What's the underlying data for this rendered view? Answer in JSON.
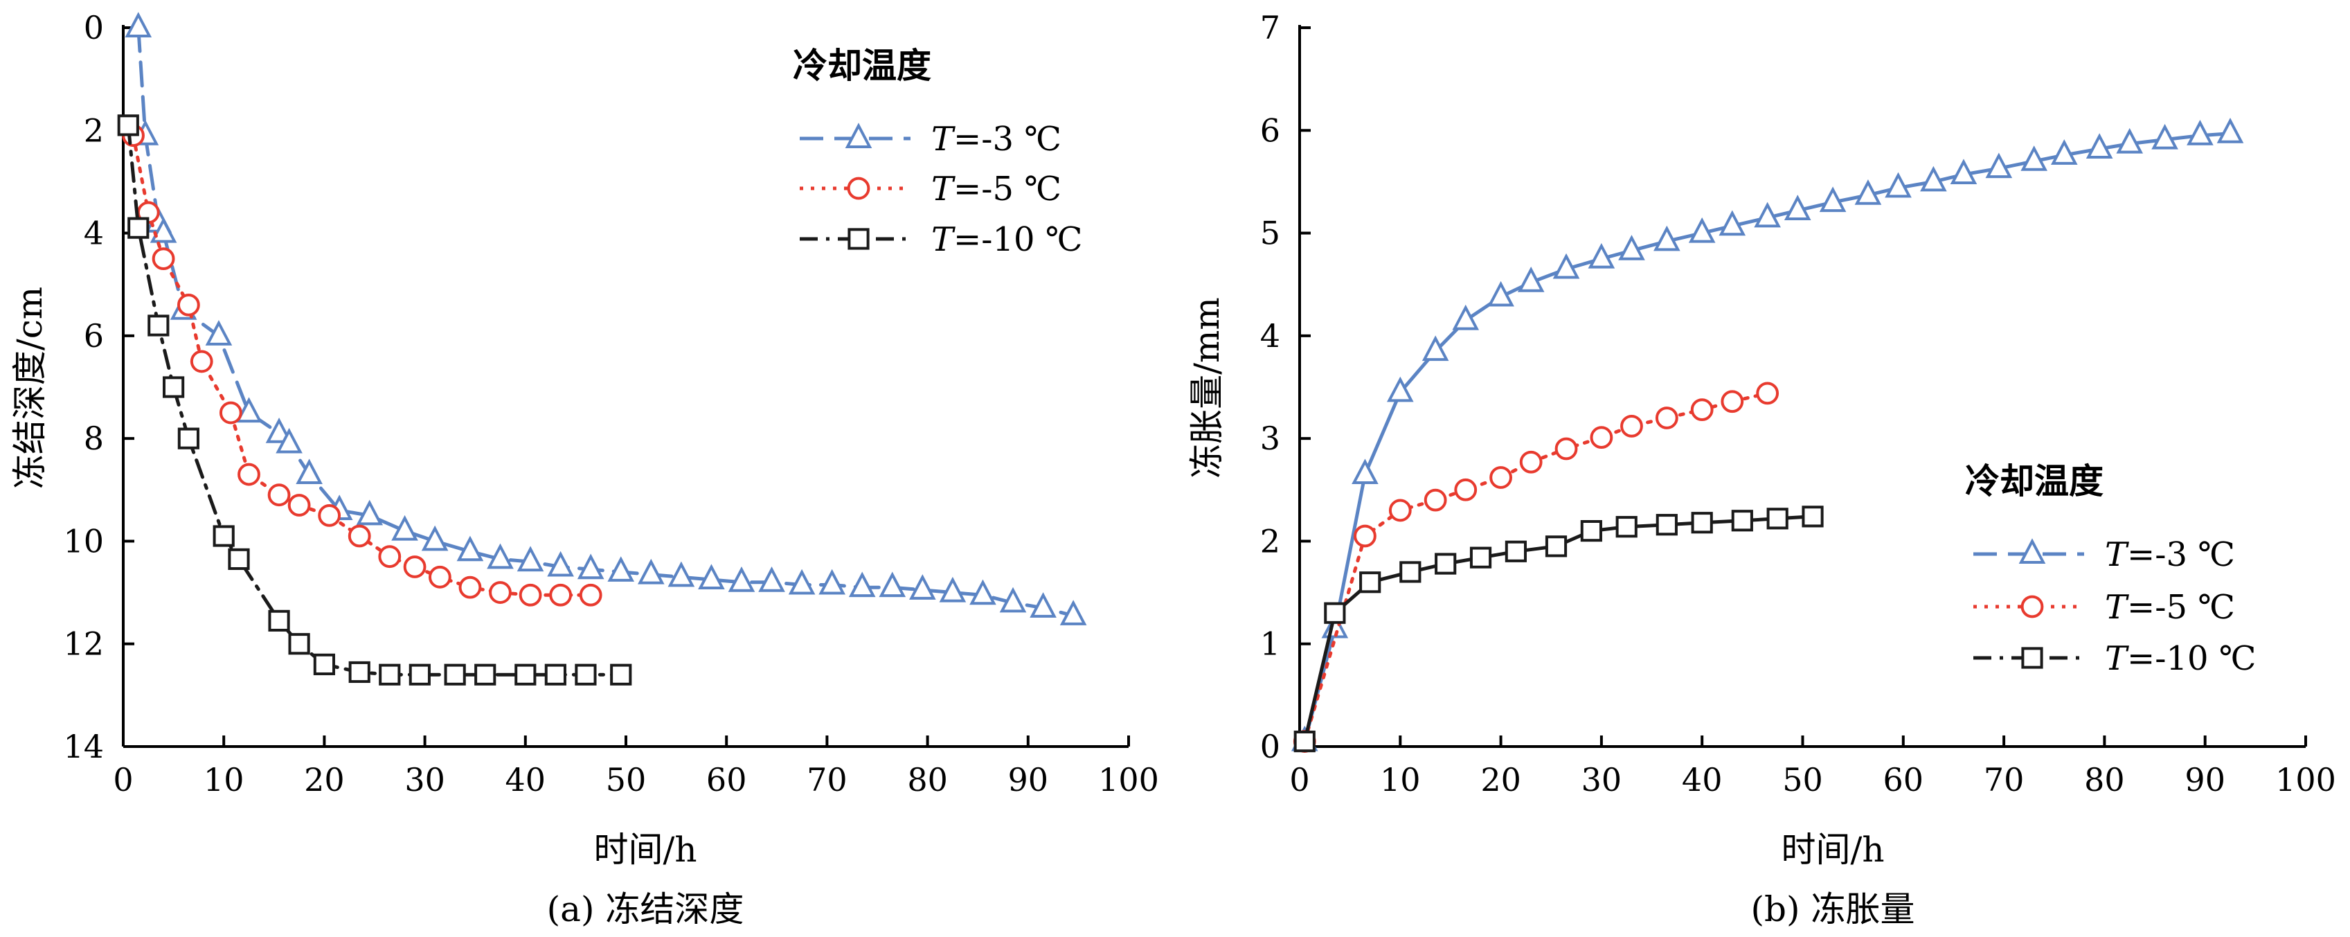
{
  "chart_data": [
    {
      "panel_label": "(a) 冻结深度",
      "type": "line",
      "xlabel": "时间/h",
      "ylabel": "冻结深度/cm",
      "xlim": [
        0,
        100
      ],
      "ylim": [
        0,
        14
      ],
      "y_inverted": true,
      "xticks": [
        0,
        10,
        20,
        30,
        40,
        50,
        60,
        70,
        80,
        90,
        100
      ],
      "yticks": [
        0,
        2,
        4,
        6,
        8,
        10,
        12,
        14
      ],
      "legend": {
        "title": "冷却温度",
        "position": "top-right",
        "entries": [
          {
            "prefix": "T",
            "suffix": "=-3 ℃"
          },
          {
            "prefix": "T",
            "suffix": "=-5 ℃"
          },
          {
            "prefix": "T",
            "suffix": "=-10 ℃"
          }
        ]
      },
      "series": [
        {
          "name": "T=-3 ℃",
          "color": "#5b84c4",
          "dash": "dashed",
          "marker": "triangle",
          "x": [
            1.5,
            2.2,
            3.5,
            4.0,
            6.0,
            9.5,
            12.5,
            15.5,
            16.5,
            18.5,
            21.5,
            24.5,
            28.0,
            31.0,
            34.5,
            37.5,
            40.5,
            43.5,
            46.5,
            49.5,
            52.5,
            55.5,
            58.5,
            61.5,
            64.5,
            67.5,
            70.5,
            73.5,
            76.5,
            79.5,
            82.5,
            85.5,
            88.5,
            91.5,
            94.5
          ],
          "y": [
            0.0,
            2.1,
            3.8,
            4.0,
            5.5,
            6.0,
            7.5,
            7.9,
            8.1,
            8.7,
            9.4,
            9.5,
            9.8,
            10.0,
            10.2,
            10.35,
            10.4,
            10.5,
            10.55,
            10.6,
            10.65,
            10.7,
            10.75,
            10.8,
            10.8,
            10.85,
            10.85,
            10.9,
            10.9,
            10.95,
            11.0,
            11.05,
            11.2,
            11.3,
            11.45
          ]
        },
        {
          "name": "T=-5 ℃",
          "color": "#e83a2e",
          "dash": "dotted",
          "marker": "circle",
          "x": [
            1.0,
            2.5,
            4.0,
            6.5,
            7.8,
            10.7,
            12.5,
            15.5,
            17.5,
            20.5,
            23.5,
            26.5,
            29.0,
            31.5,
            34.5,
            37.5,
            40.5,
            43.5,
            46.5
          ],
          "y": [
            2.1,
            3.6,
            4.5,
            5.4,
            6.5,
            7.5,
            8.7,
            9.1,
            9.3,
            9.5,
            9.9,
            10.3,
            10.5,
            10.7,
            10.9,
            11.0,
            11.05,
            11.05,
            11.05
          ]
        },
        {
          "name": "T=-10 ℃",
          "color": "#1a1a1a",
          "dash": "dashdot",
          "marker": "square",
          "x": [
            0.5,
            1.5,
            3.5,
            5.0,
            6.5,
            10.0,
            11.5,
            15.5,
            17.5,
            20.0,
            23.5,
            26.5,
            29.5,
            33.0,
            36.0,
            40.0,
            43.0,
            46.0,
            49.5
          ],
          "y": [
            1.9,
            3.9,
            5.8,
            7.0,
            8.0,
            9.9,
            10.35,
            11.55,
            12.0,
            12.4,
            12.55,
            12.6,
            12.6,
            12.6,
            12.6,
            12.6,
            12.6,
            12.6,
            12.6
          ]
        }
      ]
    },
    {
      "panel_label": "(b) 冻胀量",
      "type": "line",
      "xlabel": "时间/h",
      "ylabel": "冻胀量/mm",
      "xlim": [
        0,
        100
      ],
      "ylim": [
        0,
        7
      ],
      "y_inverted": false,
      "xticks": [
        0,
        10,
        20,
        30,
        40,
        50,
        60,
        70,
        80,
        90,
        100
      ],
      "yticks": [
        0,
        1,
        2,
        3,
        4,
        5,
        6,
        7
      ],
      "legend": {
        "title": "冷却温度",
        "position": "bottom-right",
        "entries": [
          {
            "prefix": "T",
            "suffix": "=-3 ℃"
          },
          {
            "prefix": "T",
            "suffix": "=-5 ℃"
          },
          {
            "prefix": "T",
            "suffix": "=-10 ℃"
          }
        ]
      },
      "series": [
        {
          "name": "T=-3 ℃",
          "color": "#5b84c4",
          "dash": "solid-dashed",
          "marker": "triangle",
          "x": [
            0.5,
            3.5,
            6.5,
            10.0,
            13.5,
            16.5,
            20.0,
            23.0,
            26.5,
            30.0,
            33.0,
            36.5,
            40.0,
            43.0,
            46.5,
            49.5,
            53.0,
            56.5,
            59.5,
            63.0,
            66.0,
            69.5,
            73.0,
            76.0,
            79.5,
            82.5,
            86.0,
            89.5,
            92.5
          ],
          "y": [
            0.05,
            1.15,
            2.65,
            3.45,
            3.85,
            4.15,
            4.38,
            4.52,
            4.65,
            4.75,
            4.83,
            4.92,
            5.0,
            5.07,
            5.15,
            5.22,
            5.3,
            5.37,
            5.44,
            5.5,
            5.57,
            5.63,
            5.7,
            5.76,
            5.82,
            5.87,
            5.91,
            5.95,
            5.97
          ]
        },
        {
          "name": "T=-5 ℃",
          "color": "#e83a2e",
          "dash": "dotted",
          "marker": "circle",
          "x": [
            0.5,
            6.5,
            10.0,
            13.5,
            16.5,
            20.0,
            23.0,
            26.5,
            30.0,
            33.0,
            36.5,
            40.0,
            43.0,
            46.5
          ],
          "y": [
            0.05,
            2.05,
            2.3,
            2.4,
            2.5,
            2.62,
            2.77,
            2.9,
            3.01,
            3.12,
            3.2,
            3.28,
            3.36,
            3.44
          ]
        },
        {
          "name": "T=-10 ℃",
          "color": "#1a1a1a",
          "dash": "solid-dashdot",
          "marker": "square",
          "x": [
            0.5,
            3.5,
            7.0,
            11.0,
            14.5,
            18.0,
            21.5,
            25.5,
            29.0,
            32.5,
            36.5,
            40.0,
            44.0,
            47.5,
            51.0
          ],
          "y": [
            0.05,
            1.3,
            1.6,
            1.7,
            1.78,
            1.84,
            1.9,
            1.95,
            2.1,
            2.14,
            2.16,
            2.18,
            2.2,
            2.22,
            2.24
          ]
        }
      ]
    }
  ]
}
